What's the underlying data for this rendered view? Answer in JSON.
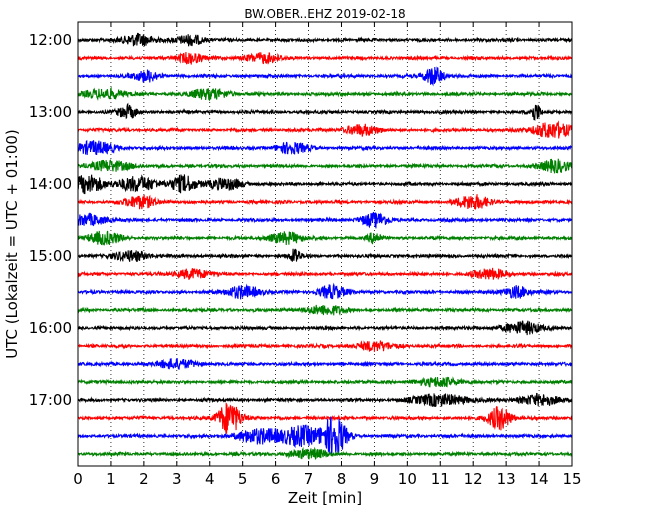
{
  "chart_data": {
    "type": "line",
    "title": "BW.OBER..EHZ 2019-02-18",
    "xlabel": "Zeit  [min]",
    "ylabel": "UTC (Lokalzeit = UTC + 01:00)",
    "xlim": [
      0,
      15
    ],
    "x_ticks": [
      "0",
      "1",
      "2",
      "3",
      "4",
      "5",
      "6",
      "7",
      "8",
      "9",
      "10",
      "11",
      "12",
      "13",
      "14",
      "15"
    ],
    "y_tick_labels": [
      "12:00",
      "13:00",
      "14:00",
      "15:00",
      "16:00",
      "17:00"
    ],
    "trace_interval_min": 15,
    "traces_per_hour": 4,
    "grid": "vertical-dotted",
    "series_colors": [
      "#000000",
      "#ff0000",
      "#0000ff",
      "#008000"
    ],
    "traces": [
      {
        "start": "12:00",
        "color": "#000000",
        "events": [
          {
            "t": 1.8,
            "amp": 1.3,
            "w": 0.5
          },
          {
            "t": 3.4,
            "amp": 1.2,
            "w": 0.4
          }
        ]
      },
      {
        "start": "12:15",
        "color": "#ff0000",
        "events": [
          {
            "t": 3.4,
            "amp": 1.2,
            "w": 0.4
          },
          {
            "t": 5.6,
            "amp": 1.1,
            "w": 0.5
          }
        ]
      },
      {
        "start": "12:30",
        "color": "#0000ff",
        "events": [
          {
            "t": 10.8,
            "amp": 2.0,
            "w": 0.3
          },
          {
            "t": 2.1,
            "amp": 1.2,
            "w": 0.4
          }
        ]
      },
      {
        "start": "12:45",
        "color": "#008000",
        "events": [
          {
            "t": 0.8,
            "amp": 1.1,
            "w": 0.6
          },
          {
            "t": 4.0,
            "amp": 1.1,
            "w": 0.6
          }
        ]
      },
      {
        "start": "13:00",
        "color": "#000000",
        "events": [
          {
            "t": 1.5,
            "amp": 1.4,
            "w": 0.3
          },
          {
            "t": 13.9,
            "amp": 2.0,
            "w": 0.15
          }
        ]
      },
      {
        "start": "13:15",
        "color": "#ff0000",
        "events": [
          {
            "t": 14.4,
            "amp": 1.8,
            "w": 0.6
          },
          {
            "t": 8.6,
            "amp": 1.2,
            "w": 0.5
          }
        ]
      },
      {
        "start": "13:30",
        "color": "#0000ff",
        "events": [
          {
            "t": 0.5,
            "amp": 1.4,
            "w": 0.6
          },
          {
            "t": 6.5,
            "amp": 1.2,
            "w": 0.5
          }
        ]
      },
      {
        "start": "13:45",
        "color": "#008000",
        "events": [
          {
            "t": 1.0,
            "amp": 1.2,
            "w": 0.6
          },
          {
            "t": 14.5,
            "amp": 1.3,
            "w": 0.5
          }
        ]
      },
      {
        "start": "14:00",
        "color": "#000000",
        "events": [
          {
            "t": 0.3,
            "amp": 2.0,
            "w": 0.5
          },
          {
            "t": 1.8,
            "amp": 1.6,
            "w": 0.6
          },
          {
            "t": 3.2,
            "amp": 1.9,
            "w": 0.4
          },
          {
            "t": 4.5,
            "amp": 1.3,
            "w": 0.5
          }
        ]
      },
      {
        "start": "14:15",
        "color": "#ff0000",
        "events": [
          {
            "t": 1.9,
            "amp": 1.3,
            "w": 0.5
          },
          {
            "t": 12.0,
            "amp": 1.5,
            "w": 0.5
          }
        ]
      },
      {
        "start": "14:30",
        "color": "#0000ff",
        "events": [
          {
            "t": 0.3,
            "amp": 1.3,
            "w": 0.5
          },
          {
            "t": 9.0,
            "amp": 1.6,
            "w": 0.4
          }
        ]
      },
      {
        "start": "14:45",
        "color": "#008000",
        "events": [
          {
            "t": 0.8,
            "amp": 1.4,
            "w": 0.5
          },
          {
            "t": 6.3,
            "amp": 1.3,
            "w": 0.5
          },
          {
            "t": 9.0,
            "amp": 1.2,
            "w": 0.2
          }
        ]
      },
      {
        "start": "15:00",
        "color": "#000000",
        "events": [
          {
            "t": 1.6,
            "amp": 1.2,
            "w": 0.5
          },
          {
            "t": 6.6,
            "amp": 1.9,
            "w": 0.15
          }
        ]
      },
      {
        "start": "15:15",
        "color": "#ff0000",
        "events": [
          {
            "t": 3.5,
            "amp": 1.1,
            "w": 0.5
          },
          {
            "t": 12.5,
            "amp": 1.1,
            "w": 0.5
          }
        ]
      },
      {
        "start": "15:30",
        "color": "#0000ff",
        "events": [
          {
            "t": 5.0,
            "amp": 1.4,
            "w": 0.5
          },
          {
            "t": 7.7,
            "amp": 1.5,
            "w": 0.4
          },
          {
            "t": 13.3,
            "amp": 1.3,
            "w": 0.4
          }
        ]
      },
      {
        "start": "15:45",
        "color": "#008000",
        "events": [
          {
            "t": 7.5,
            "amp": 1.0,
            "w": 0.6
          }
        ]
      },
      {
        "start": "16:00",
        "color": "#000000",
        "events": [
          {
            "t": 13.5,
            "amp": 1.3,
            "w": 0.6
          }
        ]
      },
      {
        "start": "16:15",
        "color": "#ff0000",
        "events": [
          {
            "t": 9.0,
            "amp": 1.0,
            "w": 0.6
          }
        ]
      },
      {
        "start": "16:30",
        "color": "#0000ff",
        "events": [
          {
            "t": 3.0,
            "amp": 1.0,
            "w": 0.6
          }
        ]
      },
      {
        "start": "16:45",
        "color": "#008000",
        "events": [
          {
            "t": 11.0,
            "amp": 1.0,
            "w": 0.6
          }
        ]
      },
      {
        "start": "17:00",
        "color": "#000000",
        "events": [
          {
            "t": 11.0,
            "amp": 1.3,
            "w": 0.8
          },
          {
            "t": 14.0,
            "amp": 1.2,
            "w": 0.6
          }
        ]
      },
      {
        "start": "17:15",
        "color": "#ff0000",
        "events": [
          {
            "t": 4.6,
            "amp": 3.6,
            "w": 0.35
          },
          {
            "t": 12.8,
            "amp": 2.6,
            "w": 0.35
          }
        ]
      },
      {
        "start": "17:30",
        "color": "#0000ff",
        "events": [
          {
            "t": 7.8,
            "amp": 4.5,
            "w": 0.35
          },
          {
            "t": 6.8,
            "amp": 2.2,
            "w": 0.6
          },
          {
            "t": 5.5,
            "amp": 1.6,
            "w": 0.7
          }
        ]
      },
      {
        "start": "17:45",
        "color": "#008000",
        "events": [
          {
            "t": 7.0,
            "amp": 1.0,
            "w": 0.6
          }
        ]
      }
    ]
  }
}
